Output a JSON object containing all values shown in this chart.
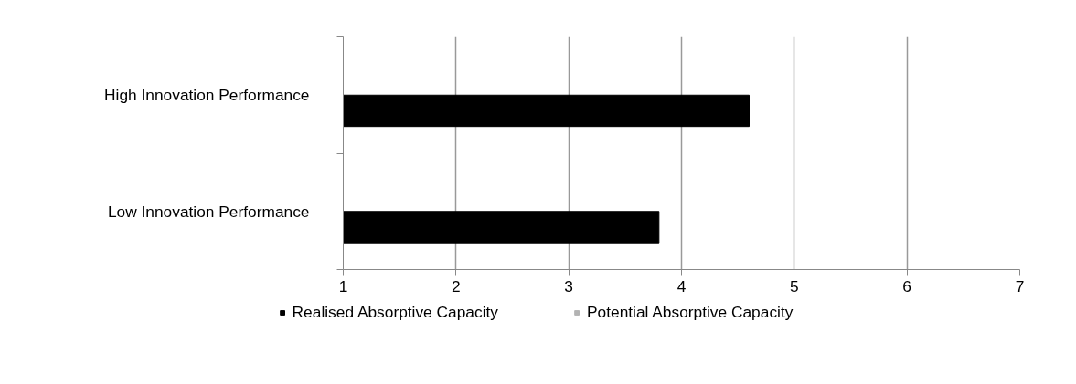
{
  "chart_data": {
    "type": "bar",
    "orientation": "horizontal",
    "categories": [
      "High Innovation Performance",
      "Low Innovation Performance"
    ],
    "series": [
      {
        "name": "Realised Absorptive Capacity",
        "color": "#000000",
        "values": [
          4.6,
          3.8
        ]
      },
      {
        "name": "Potential Absorptive Capacity",
        "color": "#b3b3b3",
        "values": [
          null,
          null
        ]
      }
    ],
    "xlim": [
      1,
      7
    ],
    "xticks": [
      1,
      2,
      3,
      4,
      5,
      6,
      7
    ],
    "grid": "x",
    "legend": "bottom"
  }
}
